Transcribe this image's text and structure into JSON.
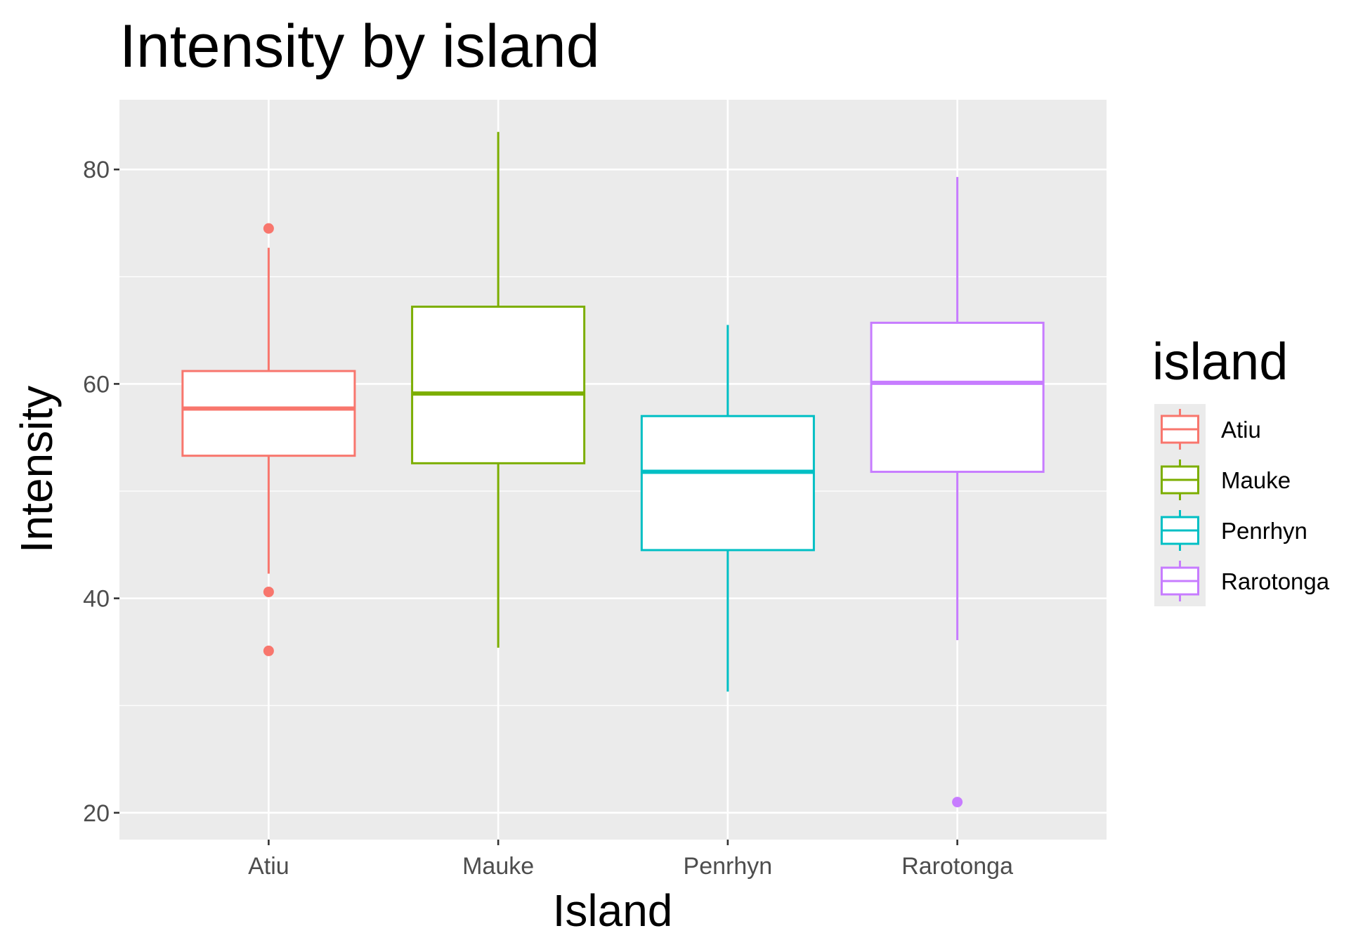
{
  "chart_data": {
    "type": "boxplot",
    "title": "Intensity by island",
    "xlabel": "Island",
    "ylabel": "Intensity",
    "ylim": [
      17.5,
      86.5
    ],
    "yticks": [
      20,
      40,
      60,
      80
    ],
    "categories": [
      "Atiu",
      "Mauke",
      "Penrhyn",
      "Rarotonga"
    ],
    "grid": true,
    "legend": {
      "title": "island",
      "position": "right",
      "entries": [
        "Atiu",
        "Mauke",
        "Penrhyn",
        "Rarotonga"
      ]
    },
    "boxes": [
      {
        "category": "Atiu",
        "whisker_low": 42.3,
        "q1": 53.3,
        "median": 57.7,
        "q3": 61.2,
        "whisker_high": 72.7,
        "outliers": [
          74.5,
          40.6,
          35.1
        ],
        "color": "#F8766D"
      },
      {
        "category": "Mauke",
        "whisker_low": 35.4,
        "q1": 52.6,
        "median": 59.1,
        "q3": 67.2,
        "whisker_high": 83.5,
        "outliers": [],
        "color": "#7CAE00"
      },
      {
        "category": "Penrhyn",
        "whisker_low": 31.3,
        "q1": 44.5,
        "median": 51.8,
        "q3": 57.0,
        "whisker_high": 65.5,
        "outliers": [],
        "color": "#00BFC4"
      },
      {
        "category": "Rarotonga",
        "whisker_low": 36.1,
        "q1": 51.8,
        "median": 60.1,
        "q3": 65.7,
        "whisker_high": 79.3,
        "outliers": [
          21.0
        ],
        "color": "#C77CFF"
      }
    ]
  }
}
